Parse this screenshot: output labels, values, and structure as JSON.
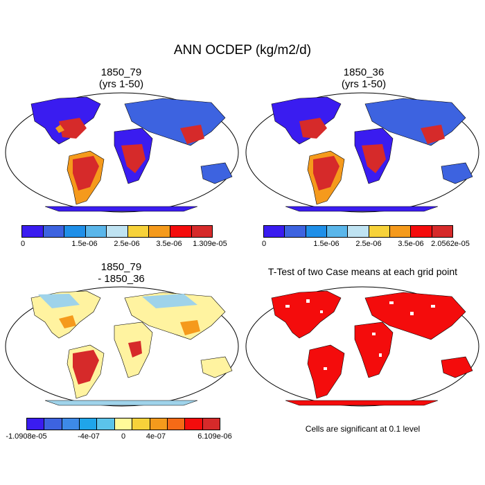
{
  "title": "ANN OCDEP (kg/m2/d)",
  "panels": [
    {
      "title_line1": "1850_79",
      "title_line2": "(yrs 1-50)"
    },
    {
      "title_line1": "1850_36",
      "title_line2": "(yrs 1-50)"
    },
    {
      "title_line1": "1850_79",
      "title_line2": "- 1850_36"
    },
    {
      "title_line1": "T-Test of two Case means at each grid point",
      "title_line2": ""
    }
  ],
  "colorbars": [
    {
      "colors": [
        "#3a1cf0",
        "#3d63e0",
        "#1f8fe8",
        "#5ab6ea",
        "#bfe3f2",
        "#f7d23a",
        "#f59a1c",
        "#f40c0c",
        "#d62a2a"
      ],
      "labels": [
        "0",
        "1.5e-06",
        "2.5e-06",
        "3.5e-06",
        "1.309e-05"
      ]
    },
    {
      "colors": [
        "#3a1cf0",
        "#3d63e0",
        "#1f8fe8",
        "#5ab6ea",
        "#bfe3f2",
        "#f7d23a",
        "#f59a1c",
        "#f40c0c",
        "#d62a2a"
      ],
      "labels": [
        "0",
        "1.5e-06",
        "2.5e-06",
        "3.5e-06",
        "2.0562e-05"
      ]
    },
    {
      "colors": [
        "#3a1cf0",
        "#3d63e0",
        "#3d8ae8",
        "#1fa5ea",
        "#5bc3ea",
        "#fffa99",
        "#f7d23a",
        "#f59a1c",
        "#f56a16",
        "#f40c0c",
        "#d62a2a"
      ],
      "labels": [
        "-1.0908e-05",
        "-4e-07",
        "0",
        "4e-07",
        "6.109e-06"
      ]
    }
  ],
  "note": "Cells are significant at 0.1 level",
  "colors": {
    "ocean": "#ffffff",
    "panel_low": "#3a1cf0",
    "panel_high": "#d62a2a",
    "diff_base": "#fff3a0",
    "ttest": "#f40c0c"
  }
}
